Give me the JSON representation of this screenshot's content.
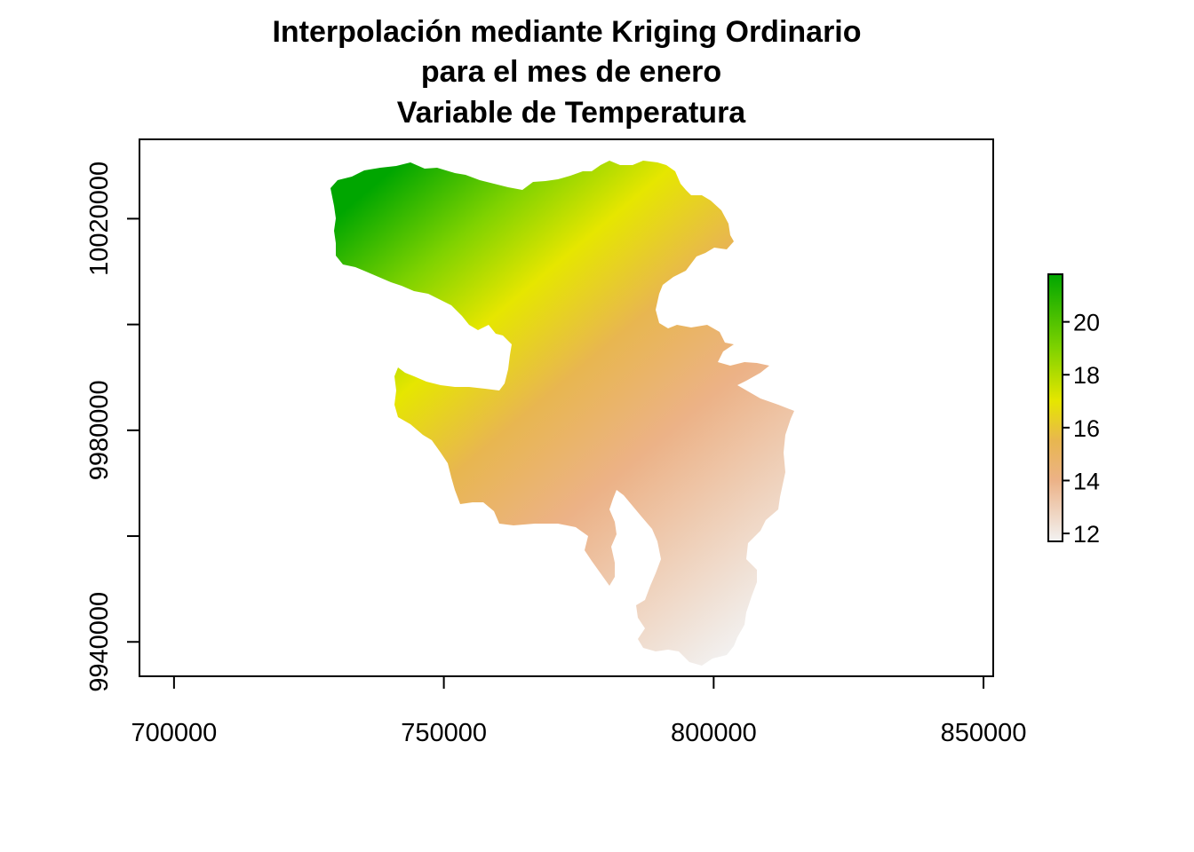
{
  "chart_data": {
    "type": "heatmap",
    "title": [
      "Interpolación mediante Kriging Ordinario",
      "para el mes de enero",
      "Variable de Temperatura"
    ],
    "xlabel": "",
    "ylabel": "",
    "x_ticks": [
      "700000",
      "750000",
      "800000",
      "850000"
    ],
    "x_tick_values": [
      700000,
      750000,
      800000,
      850000
    ],
    "y_ticks": [
      "9940000",
      "9980000",
      "10020000"
    ],
    "y_tick_values": [
      9940000,
      9980000,
      10020000
    ],
    "y_minor_tick_values": [
      9960000,
      10000000
    ],
    "xlim": [
      693600,
      851800
    ],
    "ylim": [
      9933500,
      10035000
    ],
    "value_range": [
      11.7,
      21.8
    ],
    "color_scale": [
      {
        "value": 11.7,
        "color": "#f2f2f2"
      },
      {
        "value": 14.0,
        "color": "#ecb287"
      },
      {
        "value": 15.5,
        "color": "#e8b650"
      },
      {
        "value": 17.0,
        "color": "#e6e600"
      },
      {
        "value": 19.0,
        "color": "#7fd200"
      },
      {
        "value": 21.8,
        "color": "#00a600"
      }
    ],
    "legend": {
      "ticks": [
        "12",
        "14",
        "16",
        "18",
        "20"
      ],
      "tick_values": [
        12,
        14,
        16,
        18,
        20
      ],
      "placement": "right"
    },
    "grid": false
  }
}
